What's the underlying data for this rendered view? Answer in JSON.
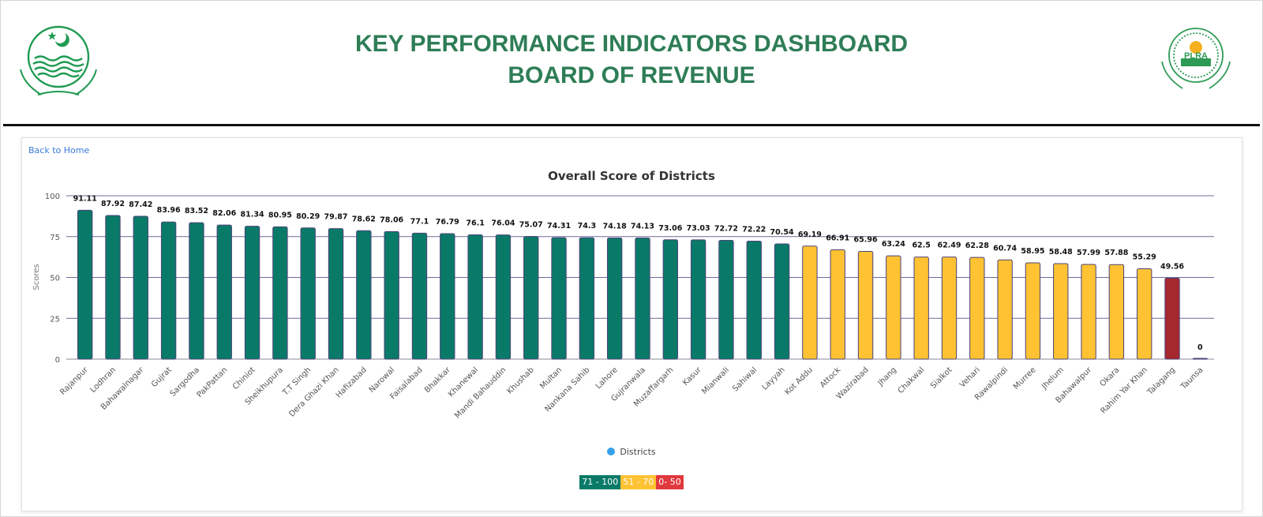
{
  "header": {
    "title_line1": "KEY PERFORMANCE INDICATORS DASHBOARD",
    "title_line2": "BOARD OF REVENUE",
    "logo_left": "punjab-government-emblem",
    "logo_right": "plra-emblem",
    "logo_right_text": "PLRA"
  },
  "nav": {
    "back_label": "Back to Home"
  },
  "colors": {
    "high": "#0a7a68",
    "mid": "#ffc233",
    "low": "#a5282e",
    "title": "#2e7d57",
    "bar_border": "#4b4378",
    "grid": "#6f6a9a",
    "legend_dot": "#36a2eb",
    "range_low_badge": "#e0393e"
  },
  "chart_data": {
    "type": "bar",
    "title": "Overall Score of Districts",
    "xlabel": "",
    "ylabel": "Scores",
    "ylim": [
      0,
      100
    ],
    "yticks": [
      0,
      25,
      50,
      75,
      100
    ],
    "grid": true,
    "legend": {
      "position": "bottom",
      "entries": [
        "Districts"
      ]
    },
    "categories": [
      "Rajanpur",
      "Lodhran",
      "Bahawalnagar",
      "Gujrat",
      "Sargodha",
      "PakPattan",
      "Chiniot",
      "Sheikhupura",
      "T.T Singh",
      "Dera Ghazi Khan",
      "Hafizabad",
      "Narowal",
      "Faisalabad",
      "Bhakkar",
      "Khanewal",
      "Mandi Bahauddin",
      "Khushab",
      "Multan",
      "Nankana Sahib",
      "Lahore",
      "Gujranwala",
      "Muzaffargarh",
      "Kasur",
      "Mianwali",
      "Sahiwal",
      "Layyah",
      "Kot Addu",
      "Attock",
      "Wazirabad",
      "Jhang",
      "Chakwal",
      "Sialkot",
      "Vehari",
      "Rawalpindi",
      "Murree",
      "Jhelum",
      "Bahawalpur",
      "Okara",
      "Rahim Yar Khan",
      "Talagang",
      "Taunsa"
    ],
    "series": [
      {
        "name": "Districts",
        "values": [
          91.11,
          87.92,
          87.42,
          83.96,
          83.52,
          82.06,
          81.34,
          80.95,
          80.29,
          79.87,
          78.62,
          78.06,
          77.1,
          76.79,
          76.1,
          76.04,
          75.07,
          74.31,
          74.3,
          74.18,
          74.13,
          73.06,
          73.03,
          72.72,
          72.22,
          70.54,
          69.19,
          66.91,
          65.96,
          63.24,
          62.5,
          62.49,
          62.28,
          60.74,
          58.95,
          58.48,
          57.99,
          57.88,
          55.29,
          49.56,
          0
        ]
      }
    ],
    "ranges": [
      {
        "label": "71 - 100",
        "min": 71,
        "max": 100,
        "color_key": "high"
      },
      {
        "label": "51 - 70",
        "min": 51,
        "max": 70,
        "color_key": "mid"
      },
      {
        "label": "0- 50",
        "min": 0,
        "max": 50,
        "color_key": "low"
      }
    ]
  }
}
